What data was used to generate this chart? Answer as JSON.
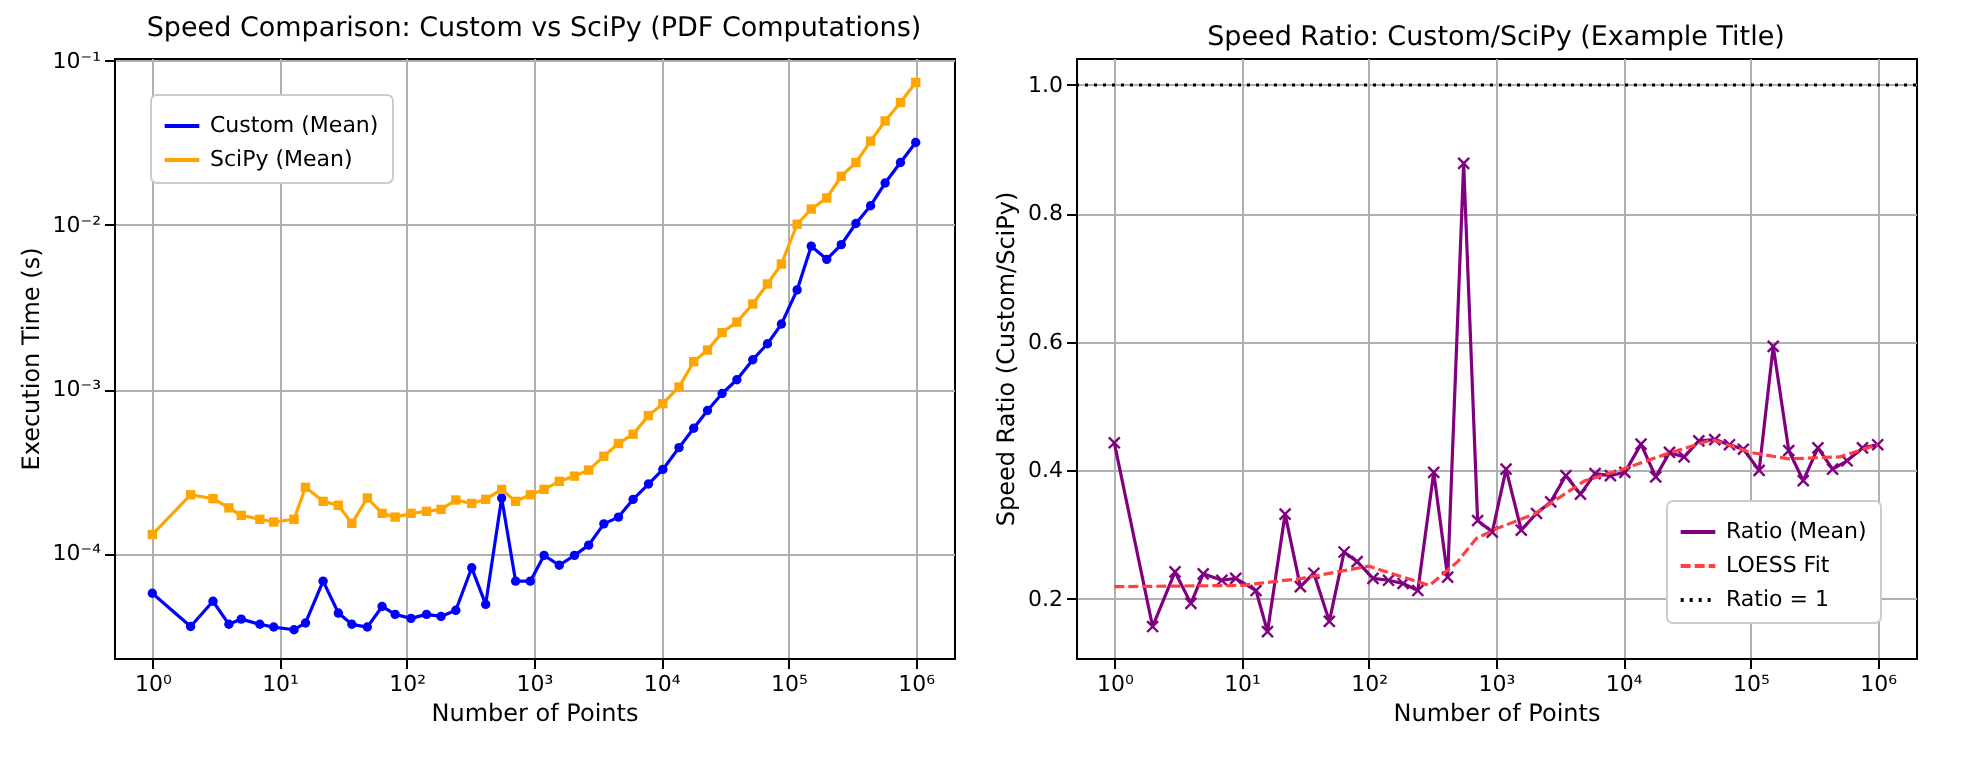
{
  "chart_data": [
    {
      "type": "line",
      "title": "Speed Comparison: Custom vs SciPy (PDF Computations)",
      "xlabel": "Number of Points",
      "ylabel": "Execution Time (s)",
      "log": "xy",
      "grid": true,
      "legend": "top left",
      "xlim": [
        0.5,
        2000000
      ],
      "ylim": [
        2.3e-05,
        0.104
      ],
      "xticks": [
        {
          "value": 1,
          "label": "10⁰"
        },
        {
          "value": 10,
          "label": "10¹"
        },
        {
          "value": 100,
          "label": "10²"
        },
        {
          "value": 1000,
          "label": "10³"
        },
        {
          "value": 10000,
          "label": "10⁴"
        },
        {
          "value": 100000,
          "label": "10⁵"
        },
        {
          "value": 1000000,
          "label": "10⁶"
        }
      ],
      "yticks": [
        {
          "value": 0.0001,
          "label": "10⁻⁴"
        },
        {
          "value": 0.001,
          "label": "10⁻³"
        },
        {
          "value": 0.01,
          "label": "10⁻²"
        },
        {
          "value": 0.1,
          "label": "10⁻¹"
        }
      ],
      "x": [
        1,
        2,
        3,
        4,
        5,
        7,
        9,
        13,
        16,
        22,
        29,
        37,
        49,
        64,
        81,
        108,
        143,
        186,
        243,
        324,
        417,
        557,
        717,
        935,
        1200,
        1580,
        2080,
        2690,
        3540,
        4610,
        6010,
        7930,
        10300,
        13800,
        18000,
        23100,
        30100,
        39300,
        52400,
        68400,
        88000,
        117000,
        151000,
        200000,
        260000,
        339000,
        442000,
        575000,
        759000,
        1000000
      ],
      "series": [
        {
          "name": "Custom (Mean)",
          "color": "#0000ff",
          "marker": "circle",
          "values": [
            5.7e-05,
            3.58e-05,
            5.1e-05,
            3.69e-05,
            3.97e-05,
            3.69e-05,
            3.55e-05,
            3.42e-05,
            3.76e-05,
            6.76e-05,
            4.32e-05,
            3.69e-05,
            3.55e-05,
            4.74e-05,
            4.24e-05,
            4.01e-05,
            4.24e-05,
            4.12e-05,
            4.49e-05,
            8.15e-05,
            4.88e-05,
            0.000217,
            6.76e-05,
            6.76e-05,
            9.7e-05,
            8.45e-05,
            9.7e-05,
            0.000112,
            0.000151,
            0.000166,
            0.000213,
            0.000264,
            0.000324,
            0.00044,
            0.000577,
            0.000741,
            0.00094,
            0.00114,
            0.00151,
            0.00189,
            0.00249,
            0.00402,
            0.00743,
            0.00617,
            0.00759,
            0.0102,
            0.0131,
            0.018,
            0.024,
            0.0318
          ]
        },
        {
          "name": "SciPy (Mean)",
          "color": "#ffa500",
          "marker": "square",
          "values": [
            0.00013,
            0.000227,
            0.000215,
            0.000189,
            0.00017,
            0.000161,
            0.000155,
            0.000161,
            0.000252,
            0.000207,
            0.000196,
            0.000152,
            0.000217,
            0.000175,
            0.000166,
            0.000175,
            0.00018,
            0.000185,
            0.000211,
            0.000201,
            0.000213,
            0.000245,
            0.000207,
            0.000227,
            0.000245,
            0.000274,
            0.000295,
            0.000321,
            0.00039,
            0.000466,
            0.000531,
            0.000689,
            0.000815,
            0.00103,
            0.00147,
            0.00173,
            0.00221,
            0.00256,
            0.0033,
            0.00437,
            0.00578,
            0.0101,
            0.0125,
            0.0146,
            0.0198,
            0.024,
            0.0324,
            0.043,
            0.0557,
            0.0738
          ]
        }
      ]
    },
    {
      "type": "line",
      "title": "Speed Ratio: Custom/SciPy (Example Title)",
      "xlabel": "Number of Points",
      "ylabel": "Speed Ratio (Custom/SciPy)",
      "log": "x",
      "grid": true,
      "legend": "bottom right",
      "xlim": [
        0.5,
        2000000
      ],
      "ylim": [
        0.108,
        1.042
      ],
      "xticks": [
        {
          "value": 1,
          "label": "10⁰"
        },
        {
          "value": 10,
          "label": "10¹"
        },
        {
          "value": 100,
          "label": "10²"
        },
        {
          "value": 1000,
          "label": "10³"
        },
        {
          "value": 10000,
          "label": "10⁴"
        },
        {
          "value": 100000,
          "label": "10⁵"
        },
        {
          "value": 1000000,
          "label": "10⁶"
        }
      ],
      "yticks": [
        0.2,
        0.4,
        0.6,
        0.8,
        {
          "value": 1,
          "label": "1.0"
        }
      ],
      "x": [
        1,
        2,
        3,
        4,
        5,
        7,
        9,
        13,
        16,
        22,
        29,
        37,
        49,
        64,
        81,
        108,
        143,
        186,
        243,
        324,
        417,
        557,
        717,
        935,
        1200,
        1580,
        2080,
        2690,
        3540,
        4610,
        6010,
        7930,
        10300,
        13800,
        18000,
        23100,
        30100,
        39300,
        52400,
        68400,
        88000,
        117000,
        151000,
        200000,
        260000,
        339000,
        442000,
        575000,
        759000,
        1000000
      ],
      "series": [
        {
          "name": "Ratio (Mean)",
          "color": "#800080",
          "marker": "cross",
          "values": [
            0.443,
            0.157,
            0.242,
            0.193,
            0.239,
            0.229,
            0.232,
            0.213,
            0.149,
            0.332,
            0.219,
            0.24,
            0.165,
            0.273,
            0.258,
            0.232,
            0.229,
            0.224,
            0.213,
            0.397,
            0.234,
            0.878,
            0.322,
            0.304,
            0.402,
            0.307,
            0.333,
            0.351,
            0.392,
            0.363,
            0.395,
            0.392,
            0.397,
            0.441,
            0.39,
            0.428,
            0.421,
            0.446,
            0.448,
            0.44,
            0.433,
            0.4,
            0.593,
            0.431,
            0.384,
            0.435,
            0.402,
            0.415,
            0.435,
            0.44
          ]
        },
        {
          "name": "LOESS Fit",
          "color": "#ff4040",
          "marker": "none",
          "line_style": "dashed",
          "x": [
            1,
            10,
            30,
            100,
            200,
            300,
            500,
            700,
            1000,
            2000,
            5000,
            10000,
            20000,
            50000,
            100000,
            200000,
            500000,
            1000000
          ],
          "values": [
            0.219,
            0.221,
            0.232,
            0.251,
            0.232,
            0.221,
            0.258,
            0.294,
            0.309,
            0.332,
            0.384,
            0.402,
            0.423,
            0.448,
            0.428,
            0.418,
            0.421,
            0.44
          ]
        }
      ],
      "ref_lines": [
        {
          "axis": "y",
          "value": 1,
          "label": "Ratio = 1",
          "color": "#000000",
          "line_style": "dotted"
        }
      ]
    }
  ]
}
